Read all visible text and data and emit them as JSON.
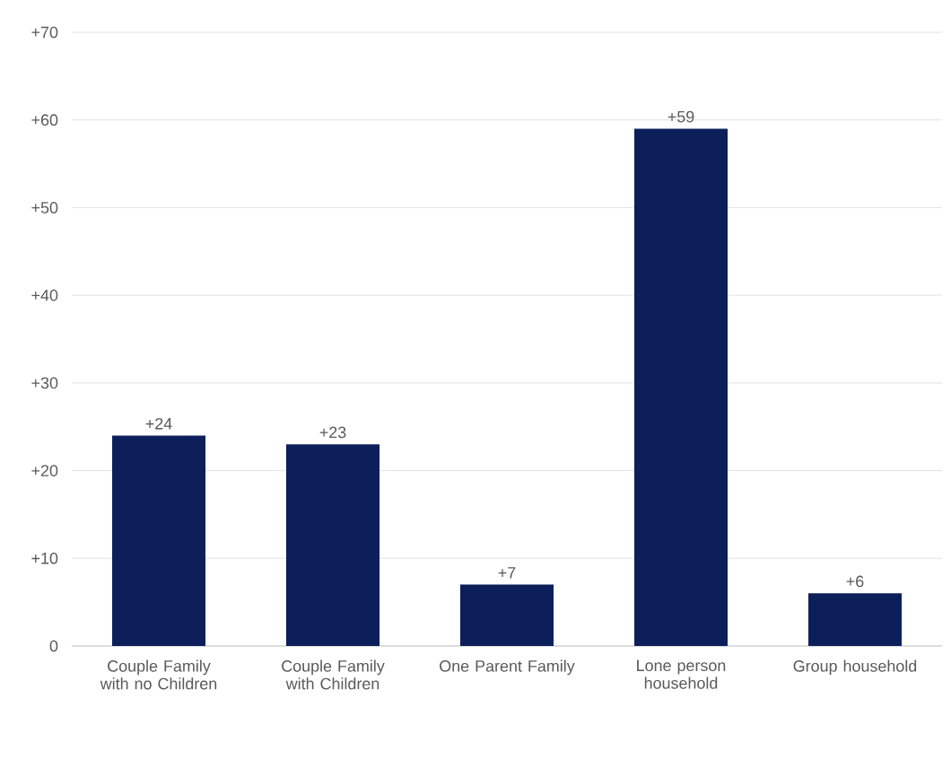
{
  "chart_data": {
    "type": "bar",
    "categories": [
      "Couple Family with no Children",
      "Couple Family with Children",
      "One Parent Family",
      "Lone person household",
      "Group household"
    ],
    "values": [
      24,
      23,
      7,
      59,
      6
    ],
    "value_labels": [
      "+24",
      "+23",
      "+7",
      "+59",
      "+6"
    ],
    "color": "#0c1f5b",
    "ylim": [
      0,
      70
    ],
    "yticks": [
      0,
      {
        "value": 10,
        "label": "+10"
      },
      {
        "value": 20,
        "label": "+20"
      },
      {
        "value": 30,
        "label": "+30"
      },
      {
        "value": 40,
        "label": "+40"
      },
      {
        "value": 50,
        "label": "+50"
      },
      {
        "value": 60,
        "label": "+60"
      },
      {
        "value": 70,
        "label": "+70"
      }
    ],
    "grid": "y"
  }
}
